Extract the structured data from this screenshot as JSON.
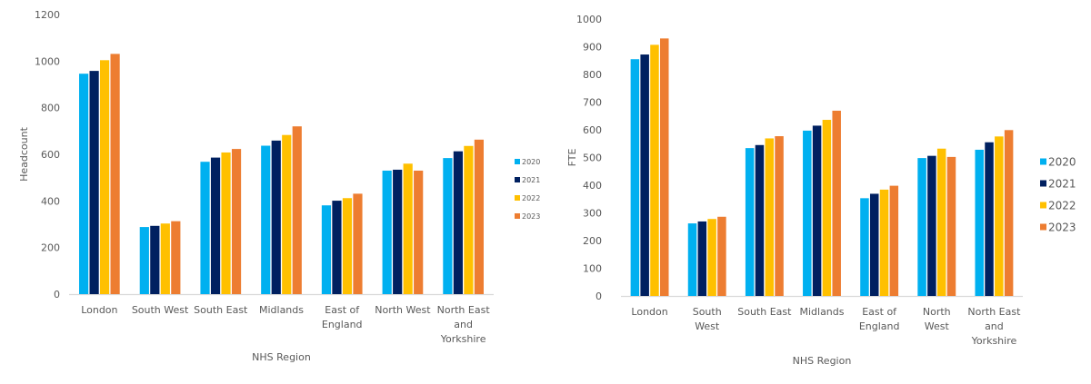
{
  "colors": {
    "2020": "#00B0F0",
    "2021": "#002060",
    "2022": "#FFC000",
    "2023": "#ED7D31",
    "axis": "#D9D9D9"
  },
  "chart_data": [
    {
      "type": "bar",
      "title": "",
      "xlabel": "NHS Region",
      "ylabel": "Headcount",
      "ylim": [
        0,
        1200
      ],
      "yticks": [
        "0",
        "200",
        "400",
        "600",
        "800",
        "1000",
        "1200"
      ],
      "grid": false,
      "legend_position": "right",
      "categories": [
        "London",
        "South West",
        "South East",
        "Midlands",
        "East of England",
        "North West",
        "North East and Yorkshire"
      ],
      "category_lines": [
        [
          "London"
        ],
        [
          "South West"
        ],
        [
          "South East"
        ],
        [
          "Midlands"
        ],
        [
          "East of",
          "England"
        ],
        [
          "North West"
        ],
        [
          "North East",
          "and",
          "Yorkshire"
        ]
      ],
      "series": [
        {
          "name": "2020",
          "values": [
            946,
            288,
            568,
            637,
            381,
            530,
            584
          ]
        },
        {
          "name": "2021",
          "values": [
            958,
            293,
            586,
            659,
            401,
            534,
            613
          ]
        },
        {
          "name": "2022",
          "values": [
            1004,
            303,
            608,
            683,
            412,
            560,
            636
          ]
        },
        {
          "name": "2023",
          "values": [
            1031,
            313,
            623,
            720,
            431,
            530,
            663
          ]
        }
      ]
    },
    {
      "type": "bar",
      "title": "",
      "xlabel": "NHS Region",
      "ylabel": "FTE",
      "ylim": [
        0,
        1000
      ],
      "yticks": [
        "0",
        "100",
        "200",
        "300",
        "400",
        "500",
        "600",
        "700",
        "800",
        "900",
        "1000"
      ],
      "grid": false,
      "legend_position": "right",
      "categories": [
        "London",
        "South West",
        "South East",
        "Midlands",
        "East of England",
        "North West",
        "North East and Yorkshire"
      ],
      "category_lines": [
        [
          "London"
        ],
        [
          "South",
          "West"
        ],
        [
          "South East"
        ],
        [
          "Midlands"
        ],
        [
          "East of",
          "England"
        ],
        [
          "North",
          "West"
        ],
        [
          "North East",
          "and",
          "Yorkshire"
        ]
      ],
      "series": [
        {
          "name": "2020",
          "values": [
            855,
            262,
            534,
            597,
            353,
            498,
            528
          ]
        },
        {
          "name": "2021",
          "values": [
            872,
            269,
            545,
            615,
            369,
            506,
            555
          ]
        },
        {
          "name": "2022",
          "values": [
            907,
            278,
            569,
            636,
            384,
            532,
            576
          ]
        },
        {
          "name": "2023",
          "values": [
            930,
            286,
            577,
            669,
            398,
            502,
            599
          ]
        }
      ]
    }
  ]
}
